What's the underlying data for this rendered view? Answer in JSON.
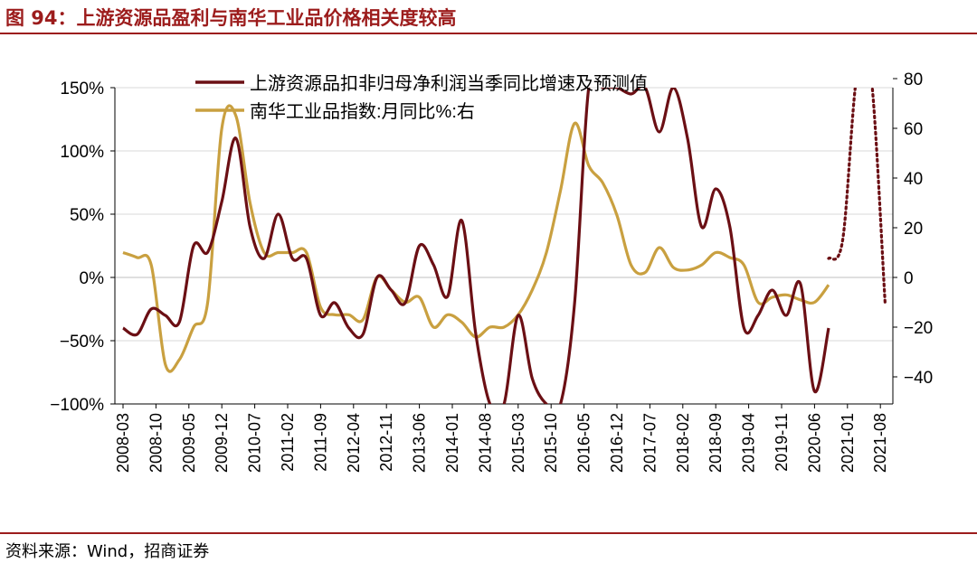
{
  "header": {
    "title": "图 94：上游资源品盈利与南华工业品价格相关度较高"
  },
  "footer": {
    "source": "资料来源：Wind，招商证券"
  },
  "chart_data": {
    "type": "line",
    "title": "",
    "left_axis": {
      "ticks": [
        "150%",
        "100%",
        "50%",
        "0%",
        "−50%",
        "−100%"
      ],
      "values": [
        150,
        100,
        50,
        0,
        -50,
        -100
      ],
      "ylim": [
        -100,
        150
      ]
    },
    "right_axis": {
      "ticks": [
        "80",
        "60",
        "40",
        "20",
        "0",
        "−20",
        "−40"
      ],
      "values": [
        80,
        60,
        40,
        20,
        0,
        -20,
        -40
      ],
      "ylim": [
        -40,
        88
      ]
    },
    "x_tick_labels": [
      "2008-03",
      "2008-10",
      "2009-05",
      "2009-12",
      "2010-07",
      "2011-02",
      "2011-09",
      "2012-04",
      "2012-11",
      "2013-06",
      "2014-01",
      "2014-08",
      "2015-03",
      "2015-10",
      "2016-05",
      "2016-12",
      "2017-07",
      "2018-02",
      "2018-09",
      "2019-04",
      "2019-11",
      "2020-06",
      "2021-01",
      "2021-08"
    ],
    "grid": "horizontal",
    "legend": "top-center",
    "series": [
      {
        "name": "上游资源品扣非归母净利润当季同比增速及预测值",
        "axis": "left",
        "color": "#6b0f14",
        "x": [
          "2008-03",
          "2008-06",
          "2008-09",
          "2008-12",
          "2009-03",
          "2009-06",
          "2009-09",
          "2009-12",
          "2010-03",
          "2010-06",
          "2010-09",
          "2010-12",
          "2011-03",
          "2011-06",
          "2011-09",
          "2011-12",
          "2012-03",
          "2012-06",
          "2012-09",
          "2012-12",
          "2013-03",
          "2013-06",
          "2013-09",
          "2013-12",
          "2014-03",
          "2014-06",
          "2014-09",
          "2014-12",
          "2015-03",
          "2015-06",
          "2015-09",
          "2015-12",
          "2016-03",
          "2016-06",
          "2016-09",
          "2016-12",
          "2017-03",
          "2017-06",
          "2017-09",
          "2017-12",
          "2018-03",
          "2018-06",
          "2018-09",
          "2018-12",
          "2019-03",
          "2019-06",
          "2019-09",
          "2019-12",
          "2020-03",
          "2020-06",
          "2020-09"
        ],
        "values": [
          -40,
          -45,
          -25,
          -30,
          -35,
          25,
          20,
          60,
          110,
          40,
          15,
          50,
          15,
          15,
          -30,
          -20,
          -40,
          -45,
          0,
          -10,
          -20,
          25,
          10,
          -15,
          45,
          -45,
          -100,
          -100,
          -30,
          -80,
          -100,
          -100,
          -20,
          150,
          150,
          150,
          145,
          150,
          115,
          150,
          110,
          40,
          70,
          40,
          -40,
          -30,
          -10,
          -30,
          -5,
          -90,
          -40
        ],
        "forecast": {
          "x": [
            "2020-09",
            "2020-12",
            "2021-03",
            "2021-06",
            "2021-09"
          ],
          "values": [
            15,
            30,
            160,
            160,
            -20
          ]
        }
      },
      {
        "name": "南华工业品指数:月同比%:右",
        "axis": "right",
        "color": "#c9a040",
        "x": [
          "2008-03",
          "2008-06",
          "2008-09",
          "2008-12",
          "2009-03",
          "2009-06",
          "2009-09",
          "2009-12",
          "2010-03",
          "2010-06",
          "2010-09",
          "2010-12",
          "2011-03",
          "2011-06",
          "2011-09",
          "2011-12",
          "2012-03",
          "2012-06",
          "2012-09",
          "2012-12",
          "2013-03",
          "2013-06",
          "2013-09",
          "2013-12",
          "2014-03",
          "2014-06",
          "2014-09",
          "2014-12",
          "2015-03",
          "2015-06",
          "2015-09",
          "2015-12",
          "2016-03",
          "2016-06",
          "2016-09",
          "2016-12",
          "2017-03",
          "2017-06",
          "2017-09",
          "2017-12",
          "2018-03",
          "2018-06",
          "2018-09",
          "2018-12",
          "2019-03",
          "2019-06",
          "2019-09",
          "2019-12",
          "2020-03",
          "2020-06",
          "2020-09"
        ],
        "values": [
          10,
          8,
          5,
          -35,
          -33,
          -20,
          -10,
          60,
          65,
          30,
          10,
          10,
          10,
          10,
          -12,
          -15,
          -15,
          -17,
          0,
          -5,
          -10,
          -8,
          -20,
          -15,
          -18,
          -24,
          -20,
          -20,
          -15,
          -5,
          10,
          35,
          62,
          45,
          38,
          25,
          5,
          2,
          12,
          4,
          3,
          5,
          10,
          8,
          5,
          -10,
          -8,
          -7,
          -9,
          -10,
          -3
        ],
        "values_note": ""
      }
    ]
  }
}
